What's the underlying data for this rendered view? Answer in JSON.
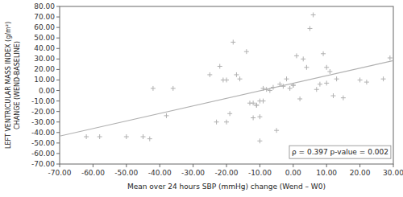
{
  "chart_data": {
    "type": "scatter",
    "xlabel": "Mean over 24 hours SBP (mmHg) change (Wend – W0)",
    "ylabel": [
      "LEFT VENTRICULAR MASS INDEX (g/m²)",
      "CHANGE (WEND-BASELINE)"
    ],
    "annotation": "ρ = 0.397  p-value = 0.002",
    "grid": false,
    "series": [
      {
        "type": "scatter",
        "marker": "+",
        "color": "#b0b0b0",
        "x": [
          -62,
          -58,
          -50,
          -45,
          -43,
          -42,
          -38,
          -36,
          -25,
          -23,
          -22,
          -21,
          -20,
          -20,
          -19,
          -18,
          -17,
          -16,
          -14,
          -13,
          -12,
          -12,
          -11,
          -11,
          -10,
          -10,
          -10,
          -9,
          -9,
          -8,
          -7,
          -6,
          -5,
          -4,
          -3,
          -2,
          -1,
          0,
          0,
          1,
          2,
          3,
          4,
          5,
          6,
          7,
          8,
          9,
          10,
          10,
          11,
          12,
          13,
          15,
          20,
          22,
          27,
          29
        ],
        "values": [
          -44,
          -44,
          -44,
          -44,
          -46,
          2,
          -24,
          2,
          15,
          -30,
          23,
          10,
          -30,
          10,
          -22,
          46,
          15,
          11,
          37,
          -12,
          -12,
          -26,
          -14,
          -14,
          -10,
          -48,
          -25,
          2,
          -10,
          1,
          0,
          3,
          -38,
          6,
          4,
          11,
          2,
          5,
          5,
          33,
          -8,
          30,
          22,
          59,
          72,
          1,
          6,
          35,
          22,
          7,
          18,
          -5,
          11,
          -7,
          10,
          8,
          11,
          31
        ]
      },
      {
        "type": "line",
        "color": "#b0b0b0",
        "x": [
          -70,
          30
        ],
        "values": [
          -43.429,
          28.505
        ]
      }
    ],
    "xlim": [
      -70,
      30
    ],
    "ylim": [
      -70,
      80
    ],
    "xticks": [
      {
        "value": -70,
        "label": "-70.00"
      },
      {
        "value": -60,
        "label": "-60.00"
      },
      {
        "value": -50,
        "label": "-50.00"
      },
      {
        "value": -40,
        "label": "-40.00"
      },
      {
        "value": -30,
        "label": "-30.00"
      },
      {
        "value": -20,
        "label": "-20.00"
      },
      {
        "value": -10,
        "label": "-10.00"
      },
      {
        "value": 0,
        "label": "0.00"
      },
      {
        "value": 10,
        "label": "10.00"
      },
      {
        "value": 20,
        "label": "20.00"
      },
      {
        "value": 30,
        "label": "30.00"
      }
    ],
    "yticks": [
      {
        "value": -70,
        "label": "-70.00"
      },
      {
        "value": -60,
        "label": "-60.00"
      },
      {
        "value": -50,
        "label": "-50.00"
      },
      {
        "value": -40,
        "label": "-40.00"
      },
      {
        "value": -30,
        "label": "-30.00"
      },
      {
        "value": -20,
        "label": "-20.00"
      },
      {
        "value": -10,
        "label": "-10.00"
      },
      {
        "value": 0,
        "label": "0.00"
      },
      {
        "value": 10,
        "label": "10.00"
      },
      {
        "value": 20,
        "label": "20.00"
      },
      {
        "value": 30,
        "label": "30.00"
      },
      {
        "value": 40,
        "label": "40.00"
      },
      {
        "value": 50,
        "label": "50.00"
      },
      {
        "value": 60,
        "label": "60.00"
      },
      {
        "value": 70,
        "label": "70.00"
      },
      {
        "value": 80,
        "label": "80.00"
      }
    ]
  }
}
